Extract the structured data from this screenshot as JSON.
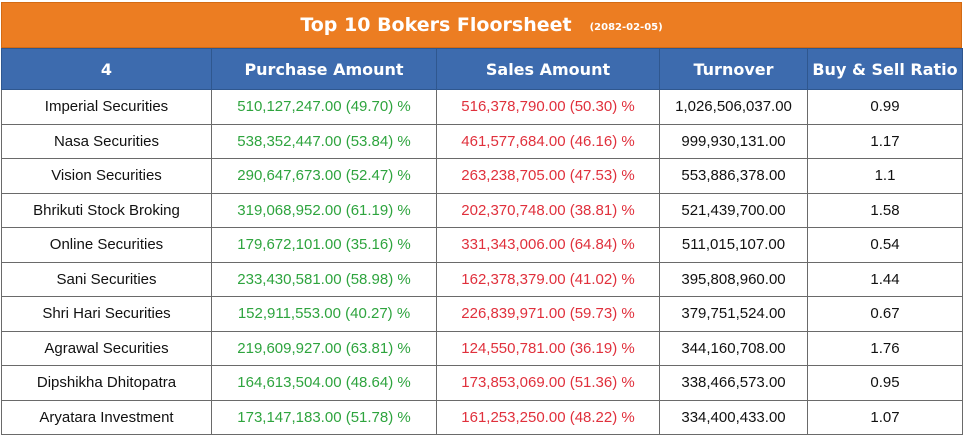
{
  "title": "Top 10 Bokers Floorsheet",
  "date": "(2082-02-05)",
  "columns": [
    "4",
    "Purchase Amount",
    "Sales Amount",
    "Turnover",
    "Buy & Sell Ratio"
  ],
  "rows": [
    {
      "broker": "Imperial Securities",
      "purchase": "510,127,247.00 (49.70) %",
      "sales": "516,378,790.00 (50.30) %",
      "turnover": "1,026,506,037.00",
      "ratio": "0.99"
    },
    {
      "broker": "Nasa Securities",
      "purchase": "538,352,447.00 (53.84) %",
      "sales": "461,577,684.00 (46.16) %",
      "turnover": "999,930,131.00",
      "ratio": "1.17"
    },
    {
      "broker": "Vision Securities",
      "purchase": "290,647,673.00 (52.47) %",
      "sales": "263,238,705.00 (47.53) %",
      "turnover": "553,886,378.00",
      "ratio": "1.1"
    },
    {
      "broker": "Bhrikuti Stock Broking",
      "purchase": "319,068,952.00 (61.19) %",
      "sales": "202,370,748.00 (38.81) %",
      "turnover": "521,439,700.00",
      "ratio": "1.58"
    },
    {
      "broker": "Online Securities",
      "purchase": "179,672,101.00 (35.16) %",
      "sales": "331,343,006.00 (64.84) %",
      "turnover": "511,015,107.00",
      "ratio": "0.54"
    },
    {
      "broker": "Sani Securities",
      "purchase": "233,430,581.00 (58.98) %",
      "sales": "162,378,379.00 (41.02) %",
      "turnover": "395,808,960.00",
      "ratio": "1.44"
    },
    {
      "broker": "Shri Hari Securities",
      "purchase": "152,911,553.00 (40.27) %",
      "sales": "226,839,971.00 (59.73) %",
      "turnover": "379,751,524.00",
      "ratio": "0.67"
    },
    {
      "broker": "Agrawal Securities",
      "purchase": "219,609,927.00 (63.81) %",
      "sales": "124,550,781.00 (36.19) %",
      "turnover": "344,160,708.00",
      "ratio": "1.76"
    },
    {
      "broker": "Dipshikha Dhitopatra",
      "purchase": "164,613,504.00 (48.64) %",
      "sales": "173,853,069.00 (51.36) %",
      "turnover": "338,466,573.00",
      "ratio": "0.95"
    },
    {
      "broker": "Aryatara Investment",
      "purchase": "173,147,183.00 (51.78) %",
      "sales": "161,253,250.00 (48.22) %",
      "turnover": "334,400,433.00",
      "ratio": "1.07"
    }
  ],
  "colors": {
    "title_bg": "#ec7d22",
    "header_bg": "#3d6bae",
    "buy": "#2ea43e",
    "sell": "#e0303c"
  }
}
